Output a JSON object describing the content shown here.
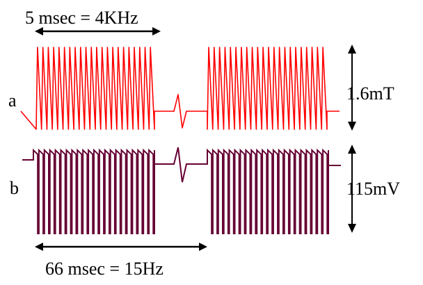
{
  "labels": {
    "time_top": "5 msec = 4KHz",
    "time_bottom": "66 msec = 15Hz",
    "trace_a": "a",
    "trace_b": "b",
    "amp_a": "1.6mT",
    "amp_b": "115mV"
  },
  "colors": {
    "trace_a": "#ff0000",
    "trace_b": "#660033",
    "arrows": "#000000",
    "background": "#ffffff"
  },
  "waveform": {
    "trace_a_shape": "sawtooth",
    "trace_b_shape": "square-sawtooth",
    "pulses_per_burst": 22,
    "bursts": 2
  }
}
